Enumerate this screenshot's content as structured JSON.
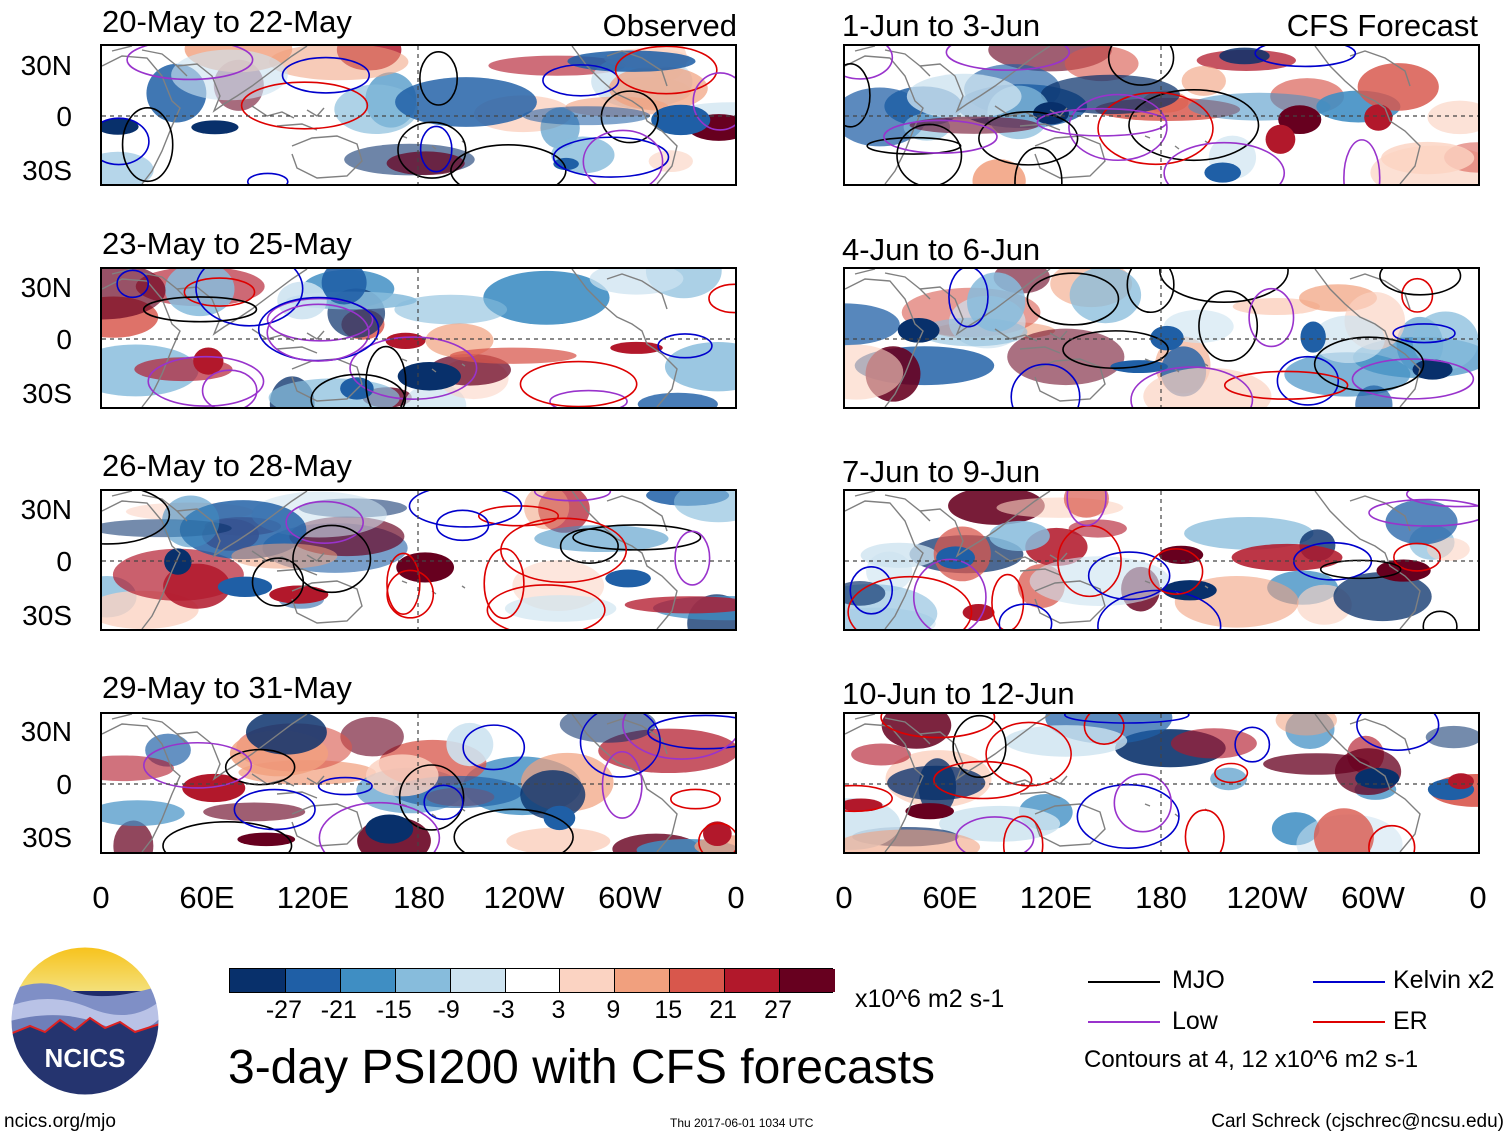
{
  "colors": {
    "mjo": "#000000",
    "low": "#9933cc",
    "kelvin": "#0000cc",
    "er": "#dd0000",
    "coast": "#808080"
  },
  "panels": [
    {
      "id": "p1",
      "title": "20-May to 22-May",
      "label": "Observed"
    },
    {
      "id": "p2",
      "title": "23-May to 25-May",
      "label": ""
    },
    {
      "id": "p3",
      "title": "26-May to 28-May",
      "label": ""
    },
    {
      "id": "p4",
      "title": "29-May to 31-May",
      "label": ""
    },
    {
      "id": "p5",
      "title": "1-Jun to 3-Jun",
      "label": "CFS Forecast"
    },
    {
      "id": "p6",
      "title": "4-Jun to 6-Jun",
      "label": ""
    },
    {
      "id": "p7",
      "title": "7-Jun to 9-Jun",
      "label": ""
    },
    {
      "id": "p8",
      "title": "10-Jun to 12-Jun",
      "label": ""
    }
  ],
  "lat_labels": [
    "30N",
    "0",
    "30S"
  ],
  "lon_labels": [
    "0",
    "60E",
    "120E",
    "180",
    "120W",
    "60W",
    "0"
  ],
  "colorbar": {
    "colors": [
      "#08306b",
      "#1f5fa6",
      "#3f8ec3",
      "#87bcdc",
      "#cde3f0",
      "#ffffff",
      "#fbd3c2",
      "#f1a07e",
      "#d8574c",
      "#b2182b",
      "#67001f"
    ],
    "ticks": [
      "-27",
      "-21",
      "-15",
      "-9",
      "-3",
      "3",
      "9",
      "15",
      "21",
      "27"
    ],
    "units": "x10^6 m2 s-1"
  },
  "legend": {
    "mjo": "MJO",
    "kelvin": "Kelvin x2",
    "low": "Low",
    "er": "ER",
    "contours": "Contours at 4, 12 x10^6 m2 s-1"
  },
  "main_title": "3-day PSI200 with CFS forecasts",
  "logo_text": "NCICS",
  "footer": {
    "url": "ncics.org/mjo",
    "timestamp": "Thu 2017-06-01 1034 UTC",
    "author": "Carl Schreck (cjschrec@ncsu.edu)"
  }
}
